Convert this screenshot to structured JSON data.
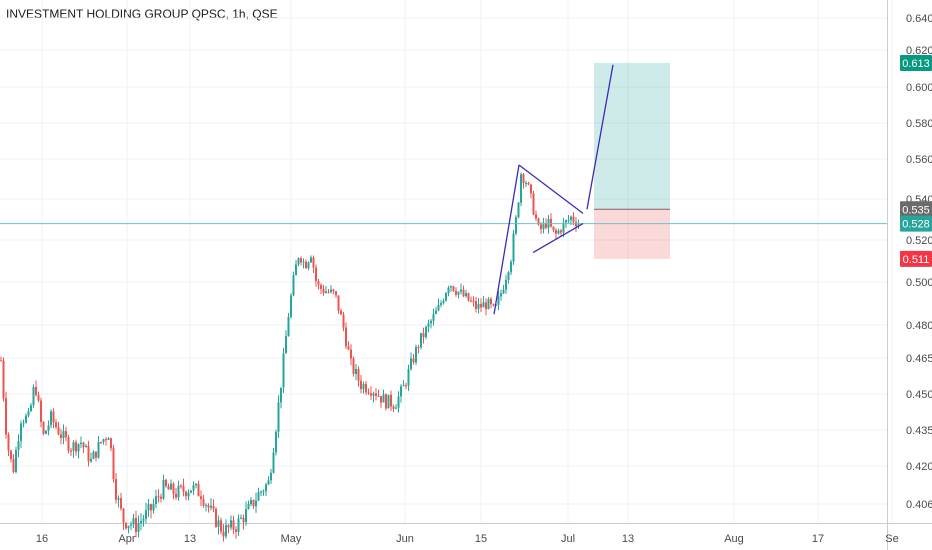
{
  "header": {
    "title": "INVESTMENT HOLDING GROUP QPSC, 1h, QSE"
  },
  "colors": {
    "up": "#26a69a",
    "down": "#ef5350",
    "grid": "#eef0f3",
    "axis_text": "#4a4a4a",
    "pattern_line": "#3d2bb5",
    "profit_zone": "rgba(38,166,154,0.22)",
    "loss_zone": "rgba(239,83,80,0.22)",
    "price_line": "#67c3c8",
    "target_badge": "#089981",
    "current_badge": "#26a69a",
    "entry_badge": "#6b6b6b",
    "stop_badge": "#f23645"
  },
  "chart_data": {
    "type": "candlestick",
    "title": "INVESTMENT HOLDING GROUP QPSC, 1h, QSE",
    "timeframe": "1h",
    "exchange": "QSE",
    "x_tick_labels": [
      "16",
      "Apr",
      "13",
      "May",
      "Jun",
      "15",
      "Jul",
      "13",
      "Aug",
      "17",
      "Se"
    ],
    "y_tick_labels": [
      "0.640",
      "0.620",
      "0.600",
      "0.580",
      "0.560",
      "0.540",
      "0.520",
      "0.500",
      "0.480",
      "0.465",
      "0.450",
      "0.435",
      "0.420",
      "0.406"
    ],
    "y_tick_values": [
      0.64,
      0.62,
      0.6,
      0.58,
      0.56,
      0.54,
      0.52,
      0.5,
      0.48,
      0.465,
      0.45,
      0.435,
      0.42,
      0.406
    ],
    "ylim": [
      0.4,
      0.645
    ],
    "price_path": [
      {
        "t": 0,
        "p": 0.464
      },
      {
        "t": 6,
        "p": 0.43
      },
      {
        "t": 12,
        "p": 0.418
      },
      {
        "t": 20,
        "p": 0.44
      },
      {
        "t": 28,
        "p": 0.44
      },
      {
        "t": 34,
        "p": 0.455
      },
      {
        "t": 42,
        "p": 0.432
      },
      {
        "t": 50,
        "p": 0.44
      },
      {
        "t": 60,
        "p": 0.433
      },
      {
        "t": 70,
        "p": 0.428
      },
      {
        "t": 80,
        "p": 0.43
      },
      {
        "t": 90,
        "p": 0.422
      },
      {
        "t": 100,
        "p": 0.43
      },
      {
        "t": 108,
        "p": 0.434
      },
      {
        "t": 114,
        "p": 0.412
      },
      {
        "t": 122,
        "p": 0.4
      },
      {
        "t": 135,
        "p": 0.398
      },
      {
        "t": 150,
        "p": 0.404
      },
      {
        "t": 162,
        "p": 0.412
      },
      {
        "t": 175,
        "p": 0.41
      },
      {
        "t": 190,
        "p": 0.412
      },
      {
        "t": 200,
        "p": 0.41
      },
      {
        "t": 210,
        "p": 0.403
      },
      {
        "t": 222,
        "p": 0.396
      },
      {
        "t": 235,
        "p": 0.398
      },
      {
        "t": 248,
        "p": 0.404
      },
      {
        "t": 258,
        "p": 0.41
      },
      {
        "t": 268,
        "p": 0.414
      },
      {
        "t": 276,
        "p": 0.44
      },
      {
        "t": 282,
        "p": 0.462
      },
      {
        "t": 288,
        "p": 0.487
      },
      {
        "t": 294,
        "p": 0.505
      },
      {
        "t": 298,
        "p": 0.514
      },
      {
        "t": 304,
        "p": 0.508
      },
      {
        "t": 310,
        "p": 0.514
      },
      {
        "t": 316,
        "p": 0.498
      },
      {
        "t": 324,
        "p": 0.496
      },
      {
        "t": 334,
        "p": 0.494
      },
      {
        "t": 342,
        "p": 0.48
      },
      {
        "t": 350,
        "p": 0.462
      },
      {
        "t": 360,
        "p": 0.454
      },
      {
        "t": 372,
        "p": 0.452
      },
      {
        "t": 384,
        "p": 0.447
      },
      {
        "t": 394,
        "p": 0.446
      },
      {
        "t": 402,
        "p": 0.452
      },
      {
        "t": 410,
        "p": 0.462
      },
      {
        "t": 418,
        "p": 0.472
      },
      {
        "t": 428,
        "p": 0.48
      },
      {
        "t": 438,
        "p": 0.488
      },
      {
        "t": 448,
        "p": 0.5
      },
      {
        "t": 456,
        "p": 0.496
      },
      {
        "t": 466,
        "p": 0.492
      },
      {
        "t": 476,
        "p": 0.488
      },
      {
        "t": 486,
        "p": 0.49
      },
      {
        "t": 494,
        "p": 0.486
      },
      {
        "t": 502,
        "p": 0.498
      },
      {
        "t": 510,
        "p": 0.512
      },
      {
        "t": 516,
        "p": 0.533
      },
      {
        "t": 520,
        "p": 0.553
      },
      {
        "t": 526,
        "p": 0.548
      },
      {
        "t": 532,
        "p": 0.536
      },
      {
        "t": 538,
        "p": 0.524
      },
      {
        "t": 546,
        "p": 0.529
      },
      {
        "t": 554,
        "p": 0.522
      },
      {
        "t": 562,
        "p": 0.527
      },
      {
        "t": 570,
        "p": 0.531
      },
      {
        "t": 578,
        "p": 0.528
      }
    ],
    "annotations": {
      "pattern": "symmetrical triangle breakout",
      "pole_line": [
        {
          "x": 494,
          "p": 0.485
        },
        {
          "x": 519,
          "p": 0.557
        }
      ],
      "triangle_upper": [
        {
          "x": 519,
          "p": 0.557
        },
        {
          "x": 583,
          "p": 0.533
        }
      ],
      "triangle_lower": [
        {
          "x": 533,
          "p": 0.514
        },
        {
          "x": 583,
          "p": 0.528
        }
      ],
      "projection": [
        {
          "x": 587,
          "p": 0.535
        },
        {
          "x": 613,
          "p": 0.612
        }
      ],
      "position": {
        "entry": 0.535,
        "target": 0.613,
        "stop": 0.511,
        "x_start": 594,
        "x_end": 670
      }
    },
    "badges": {
      "target": "0.613",
      "entry": "0.535",
      "current": "0.528",
      "stop": "0.511"
    },
    "current_price": 0.528,
    "grid": true
  }
}
